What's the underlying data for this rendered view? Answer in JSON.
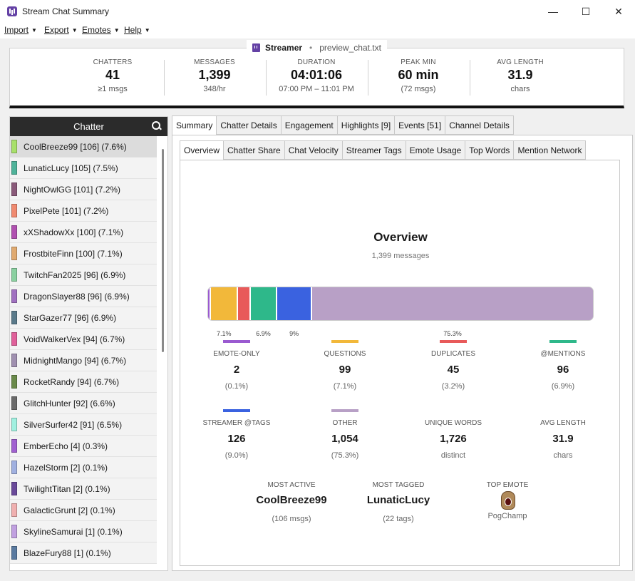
{
  "window": {
    "title": "Stream Chat Summary",
    "accent": "#6441a5"
  },
  "menu": [
    {
      "label": "Import"
    },
    {
      "label": "Export"
    },
    {
      "label": "Emotes"
    },
    {
      "label": "Help"
    }
  ],
  "header": {
    "streamer": "Streamer",
    "separator": "•",
    "file": "preview_chat.txt",
    "stats": [
      {
        "label": "CHATTERS",
        "value": "41",
        "sub": "≥1 msgs"
      },
      {
        "label": "MESSAGES",
        "value": "1,399",
        "sub": "348/hr"
      },
      {
        "label": "DURATION",
        "value": "04:01:06",
        "sub": "07:00 PM – 11:01 PM"
      },
      {
        "label": "PEAK MIN",
        "value": "60 min",
        "sub": "(72 msgs)"
      },
      {
        "label": "AVG LENGTH",
        "value": "31.9",
        "sub": "chars"
      }
    ]
  },
  "chatters": {
    "heading": "Chatter",
    "items": [
      {
        "label": "CoolBreeze99 [106] (7.6%)",
        "color": "#a8e06a",
        "selected": true
      },
      {
        "label": "LunaticLucy [105] (7.5%)",
        "color": "#4fb39a"
      },
      {
        "label": "NightOwlGG [101] (7.2%)",
        "color": "#8a5a7a"
      },
      {
        "label": "PixelPete [101] (7.2%)",
        "color": "#f08a70"
      },
      {
        "label": "xXShadowXx [100] (7.1%)",
        "color": "#b050b0"
      },
      {
        "label": "FrostbiteFinn [100] (7.1%)",
        "color": "#e0aa70"
      },
      {
        "label": "TwitchFan2025 [96] (6.9%)",
        "color": "#8ad0a0"
      },
      {
        "label": "DragonSlayer88 [96] (6.9%)",
        "color": "#a070c0"
      },
      {
        "label": "StarGazer77 [96] (6.9%)",
        "color": "#5a7a8a"
      },
      {
        "label": "VoidWalkerVex [94] (6.7%)",
        "color": "#e0609a"
      },
      {
        "label": "MidnightMango [94] (6.7%)",
        "color": "#a090b0"
      },
      {
        "label": "RocketRandy [94] (6.7%)",
        "color": "#6a8a4a"
      },
      {
        "label": "GlitchHunter [92] (6.6%)",
        "color": "#6a6a6a"
      },
      {
        "label": "SilverSurfer42 [91] (6.5%)",
        "color": "#a0f0e0"
      },
      {
        "label": "EmberEcho [4] (0.3%)",
        "color": "#a060d0"
      },
      {
        "label": "HazelStorm [2] (0.1%)",
        "color": "#a0b0e0"
      },
      {
        "label": "TwilightTitan [2] (0.1%)",
        "color": "#6a4a9a"
      },
      {
        "label": "GalacticGrunt [2] (0.1%)",
        "color": "#f0b0b0"
      },
      {
        "label": "SkylineSamurai [1] (0.1%)",
        "color": "#c0a0e0"
      },
      {
        "label": "BlazeFury88 [1] (0.1%)",
        "color": "#5a7aa0"
      }
    ]
  },
  "tabs": [
    {
      "label": "Summary",
      "active": true
    },
    {
      "label": "Chatter Details"
    },
    {
      "label": "Engagement"
    },
    {
      "label": "Highlights [9]"
    },
    {
      "label": "Events [51]"
    },
    {
      "label": "Channel Details"
    }
  ],
  "subtabs": [
    {
      "label": "Overview",
      "active": true
    },
    {
      "label": "Chatter Share"
    },
    {
      "label": "Chat Velocity"
    },
    {
      "label": "Streamer Tags"
    },
    {
      "label": "Emote Usage"
    },
    {
      "label": "Top Words"
    },
    {
      "label": "Mention Network"
    }
  ],
  "overview": {
    "title": "Overview",
    "subtitle": "1,399 messages",
    "breakdown": [
      {
        "key": "emote-only",
        "fraction": 0.001,
        "color": "#9a5ad0",
        "label": ""
      },
      {
        "key": "questions",
        "fraction": 0.071,
        "color": "#f2b83a",
        "label": "7.1%"
      },
      {
        "key": "duplicates",
        "fraction": 0.032,
        "color": "#e85a5a",
        "label": ""
      },
      {
        "key": "mentions",
        "fraction": 0.069,
        "color": "#2eb88a",
        "label": "6.9%"
      },
      {
        "key": "streamer-tags",
        "fraction": 0.09,
        "color": "#3a62e0",
        "label": "9%"
      },
      {
        "key": "other",
        "fraction": 0.753,
        "color": "#b8a0c6",
        "label": "75.3%"
      }
    ],
    "metrics": [
      {
        "label": "EMOTE-ONLY",
        "value": "2",
        "sub": "(0.1%)",
        "color": "#9a5ad0"
      },
      {
        "label": "QUESTIONS",
        "value": "99",
        "sub": "(7.1%)",
        "color": "#f2b83a"
      },
      {
        "label": "DUPLICATES",
        "value": "45",
        "sub": "(3.2%)",
        "color": "#e85a5a"
      },
      {
        "label": "@MENTIONS",
        "value": "96",
        "sub": "(6.9%)",
        "color": "#2eb88a"
      },
      {
        "label": "STREAMER @TAGS",
        "value": "126",
        "sub": "(9.0%)",
        "color": "#3a62e0"
      },
      {
        "label": "OTHER",
        "value": "1,054",
        "sub": "(75.3%)",
        "color": "#b8a0c6"
      },
      {
        "label": "UNIQUE WORDS",
        "value": "1,726",
        "sub": "distinct",
        "color": ""
      },
      {
        "label": "AVG LENGTH",
        "value": "31.9",
        "sub": "chars",
        "color": ""
      }
    ],
    "most_active": {
      "label": "MOST ACTIVE",
      "value": "CoolBreeze99",
      "sub": "(106 msgs)"
    },
    "most_tagged": {
      "label": "MOST TAGGED",
      "value": "LunaticLucy",
      "sub": "(22 tags)"
    },
    "top_emote": {
      "label": "TOP EMOTE",
      "name": "PogChamp",
      "icon": "pogchamp-emote-icon"
    }
  }
}
